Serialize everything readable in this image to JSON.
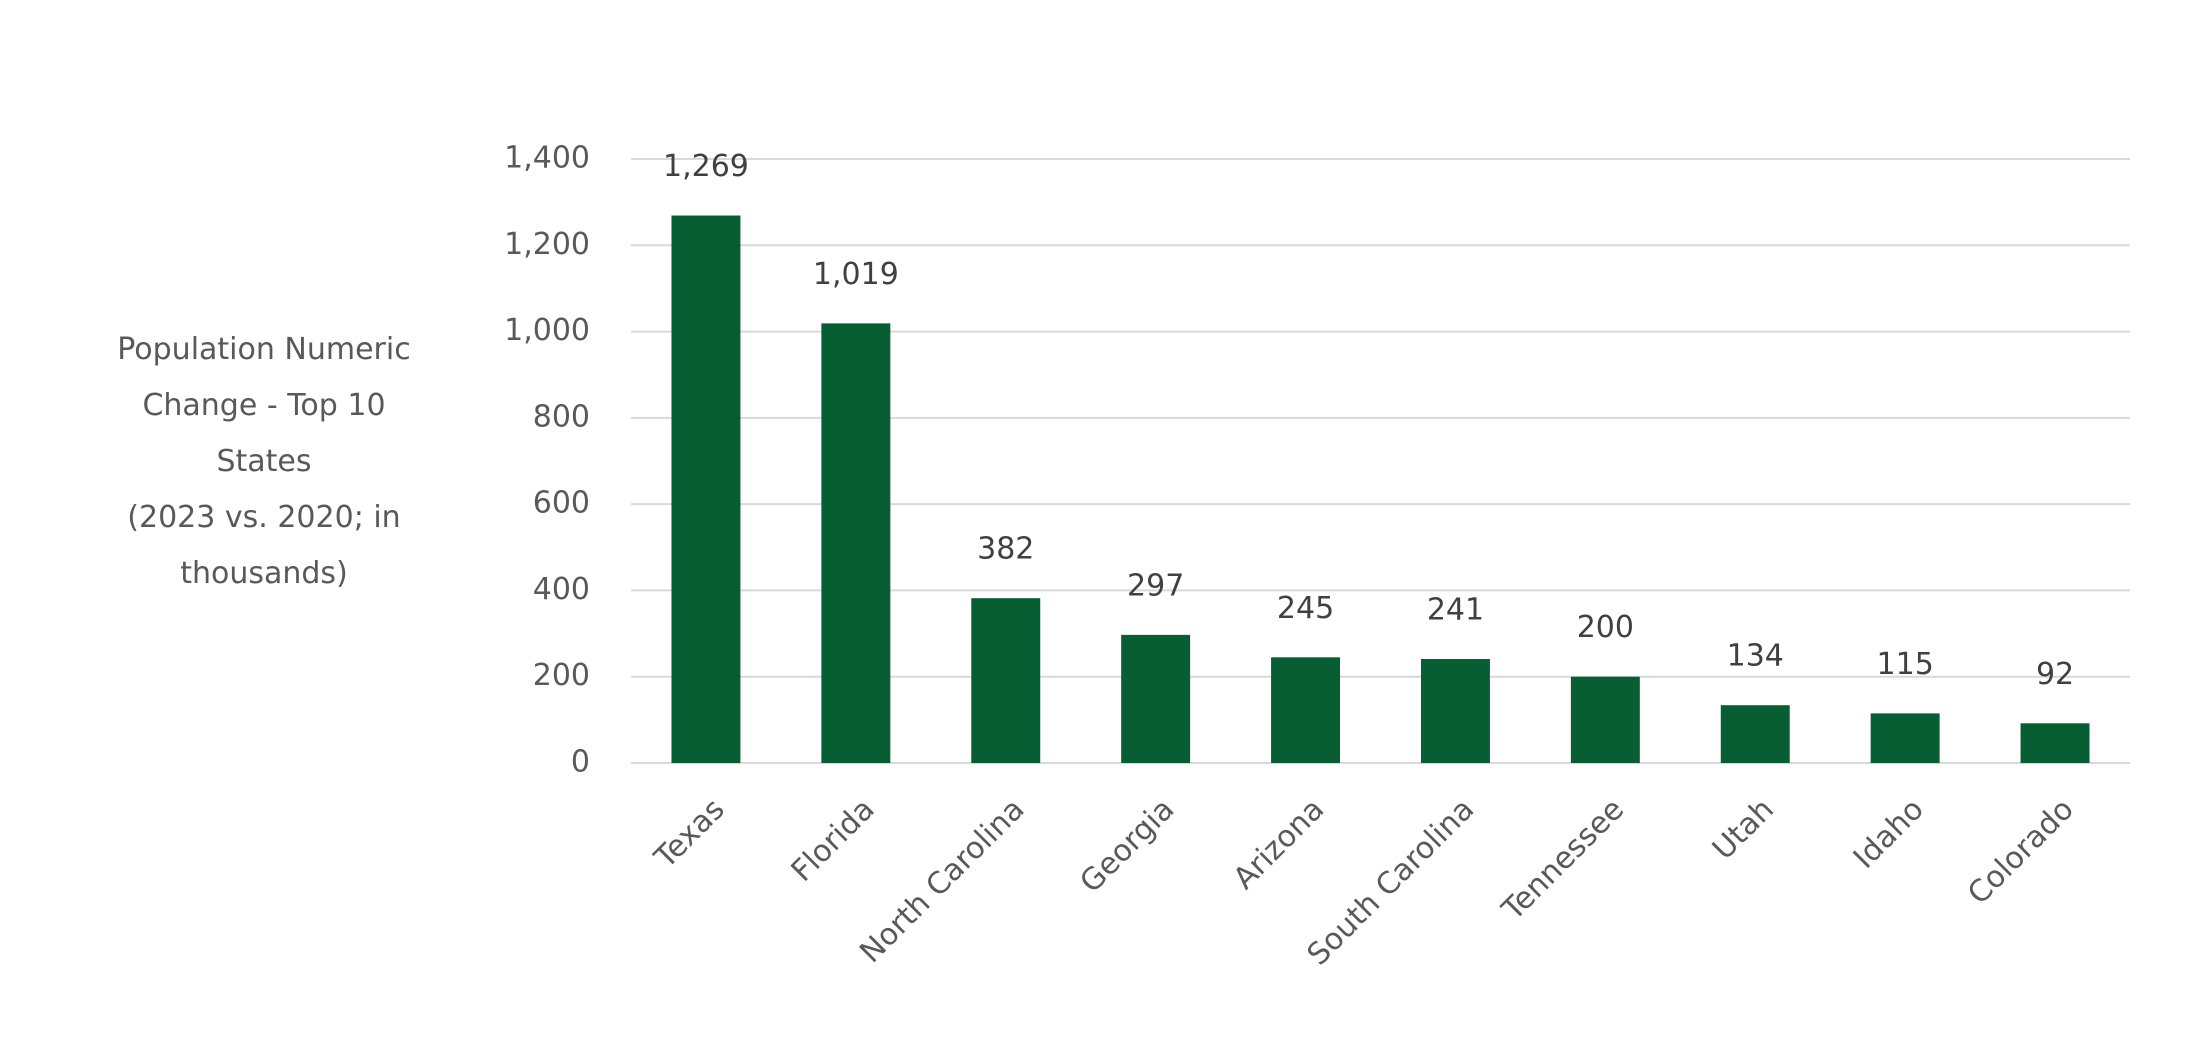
{
  "chart_data": {
    "type": "bar",
    "ylabel": [
      "Population Numeric",
      "Change - Top 10",
      "States",
      "(2023 vs. 2020; in",
      "thousands)"
    ],
    "categories": [
      "Texas",
      "Florida",
      "North Carolina",
      "Georgia",
      "Arizona",
      "South Carolina",
      "Tennessee",
      "Utah",
      "Idaho",
      "Colorado"
    ],
    "values": [
      1269,
      1019,
      382,
      297,
      245,
      241,
      200,
      134,
      115,
      92
    ],
    "value_labels": [
      "1,269",
      "1,019",
      "382",
      "297",
      "245",
      "241",
      "200",
      "134",
      "115",
      "92"
    ],
    "color": "#075e33",
    "ylim": [
      0,
      1400
    ],
    "yticks": [
      0,
      200,
      400,
      600,
      800,
      {
        "value": 1000,
        "label": "1,000"
      },
      {
        "value": 1200,
        "label": "1,200"
      },
      {
        "value": 1400,
        "label": "1,400"
      }
    ],
    "grid": true
  }
}
